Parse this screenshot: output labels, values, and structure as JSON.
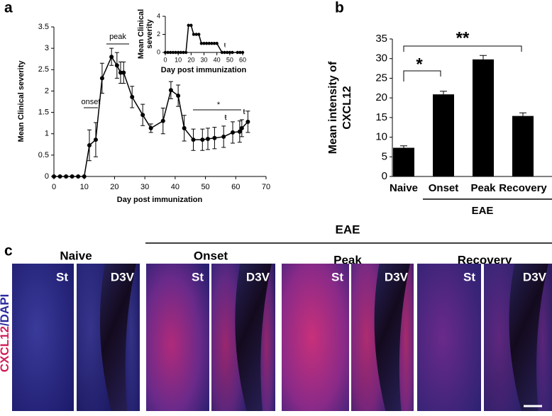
{
  "chart_data": [
    {
      "type": "line",
      "panel_label": "a",
      "x_label": "Day post immunization",
      "y_label": "Mean Clinical severity",
      "x": [
        0,
        2,
        4,
        6,
        8,
        10,
        11.7,
        13.8,
        15.9,
        19,
        20.8,
        22,
        23,
        25.8,
        29.3,
        32,
        36,
        38.6,
        41,
        43,
        46,
        49,
        50.8,
        53,
        56,
        59,
        61.3,
        62,
        64
      ],
      "values": [
        0,
        0,
        0,
        0,
        0,
        0,
        0.73,
        0.86,
        2.3,
        2.8,
        2.6,
        2.43,
        2.43,
        1.86,
        1.44,
        1.13,
        1.3,
        2.02,
        1.89,
        1.13,
        0.86,
        0.86,
        0.88,
        0.9,
        0.93,
        1.03,
        1.05,
        1.13,
        1.28
      ],
      "errors": [
        null,
        null,
        null,
        null,
        null,
        null,
        0.36,
        0.4,
        0.35,
        0.2,
        0.3,
        0.25,
        0.25,
        0.25,
        0.25,
        0.1,
        0.3,
        0.2,
        0.25,
        0.3,
        0.25,
        0.25,
        0.25,
        0.25,
        0.25,
        0.25,
        0.25,
        0.2,
        0.25
      ],
      "color": "#000000",
      "xlim": [
        0,
        70
      ],
      "xticks": [
        0,
        10,
        20,
        30,
        40,
        50,
        60,
        70
      ],
      "ylim": [
        0,
        3.5
      ],
      "yticks": [
        0,
        0.5,
        1,
        1.5,
        2,
        2.5,
        3,
        3.5
      ],
      "annotations": [
        "onset",
        "peak",
        "*",
        "ŧ",
        "ŧ"
      ]
    },
    {
      "type": "line",
      "x_label": "Day post immunization",
      "y_label": [
        "Mean Clinical",
        "severity"
      ],
      "x": [
        0,
        2,
        4,
        6,
        8,
        10,
        12,
        14,
        16,
        18,
        20,
        22,
        24,
        26,
        28,
        30,
        32,
        34,
        36,
        38,
        40,
        44,
        46,
        48,
        50,
        52,
        56,
        58,
        60
      ],
      "values": [
        0,
        0,
        0,
        0,
        0,
        0,
        0,
        0,
        0,
        3,
        3,
        2,
        2,
        2,
        1,
        1,
        1,
        1,
        1,
        1,
        1,
        0,
        0,
        0,
        0,
        0,
        0,
        0,
        0
      ],
      "errors": [
        null,
        null,
        null,
        null,
        null,
        null,
        null,
        null,
        null,
        null,
        null,
        null,
        null,
        null,
        null,
        null,
        null,
        null,
        null,
        null,
        null,
        null,
        null,
        null,
        null,
        null,
        null,
        null,
        null
      ],
      "color": "#000000",
      "xlim": [
        0,
        60
      ],
      "xticks": [
        0,
        10,
        20,
        30,
        40,
        50,
        60
      ],
      "ylim": [
        0,
        4
      ],
      "yticks": [
        0,
        2,
        4
      ],
      "annotations": [
        "ŧ"
      ]
    },
    {
      "type": "bar",
      "panel_label": "b",
      "y_label": [
        "Mean intensity of",
        "CXCL12"
      ],
      "categories": [
        "Naive",
        "Onset",
        "Peak",
        "Recovery"
      ],
      "values": [
        7.3,
        20.9,
        29.8,
        15.4
      ],
      "errors": [
        0.5,
        0.8,
        1.0,
        0.8
      ],
      "color": "#000000",
      "ylim": [
        0,
        35
      ],
      "yticks": [
        0,
        5,
        10,
        15,
        20,
        25,
        30,
        35
      ],
      "group_label": "EAE",
      "annotations": [
        "*",
        "**"
      ]
    }
  ],
  "image_panel": {
    "panel_label": "c",
    "group_label": "EAE",
    "stain_label": [
      "CXCL12",
      "/DAPI"
    ],
    "groups": [
      {
        "name": "Naive",
        "tiles": [
          "St",
          "D3V"
        ]
      },
      {
        "name": "Onset",
        "tiles": [
          "St",
          "D3V"
        ]
      },
      {
        "name": "Peak",
        "tiles": [
          "St",
          "D3V"
        ]
      },
      {
        "name": "Recovery",
        "tiles": [
          "St",
          "D3V"
        ]
      }
    ]
  }
}
